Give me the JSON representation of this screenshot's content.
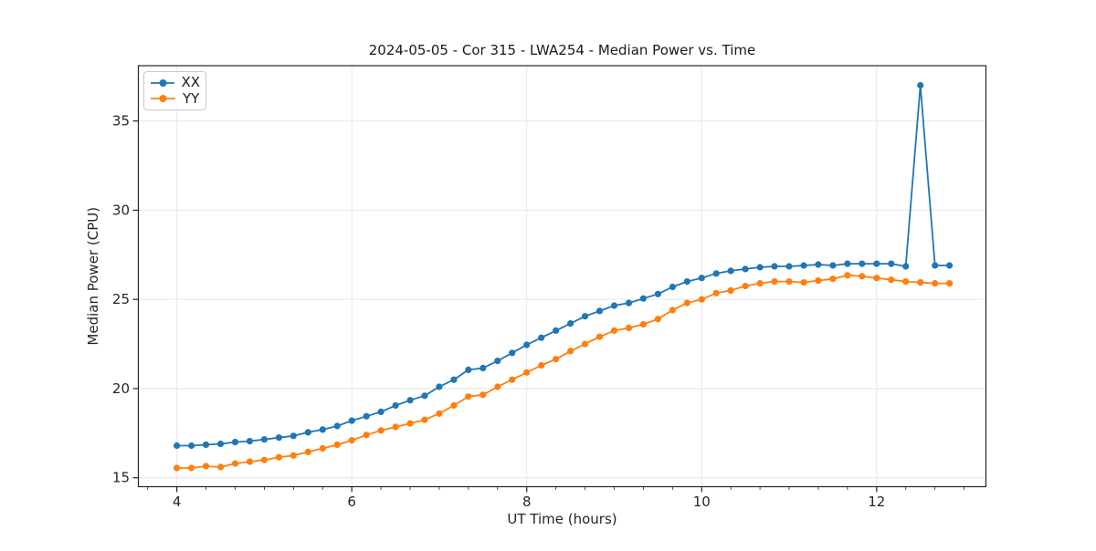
{
  "chart_data": {
    "type": "line",
    "title": "2024-05-05 - Cor 315 - LWA254 - Median Power vs. Time",
    "xlabel": "UT Time (hours)",
    "ylabel": "Median Power (CPU)",
    "grid": true,
    "legend_position": "upper left",
    "x_ticks": [
      4,
      6,
      8,
      10,
      12
    ],
    "y_ticks": [
      15,
      20,
      25,
      30,
      35
    ],
    "x_minor_tick_step": 0.3333,
    "xlim": [
      3.56,
      13.25
    ],
    "ylim": [
      14.5,
      38.1
    ],
    "x": [
      4.0,
      4.167,
      4.333,
      4.5,
      4.667,
      4.833,
      5.0,
      5.167,
      5.333,
      5.5,
      5.667,
      5.833,
      6.0,
      6.167,
      6.333,
      6.5,
      6.667,
      6.833,
      7.0,
      7.167,
      7.333,
      7.5,
      7.667,
      7.833,
      8.0,
      8.167,
      8.333,
      8.5,
      8.667,
      8.833,
      9.0,
      9.167,
      9.333,
      9.5,
      9.667,
      9.833,
      10.0,
      10.167,
      10.333,
      10.5,
      10.667,
      10.833,
      11.0,
      11.167,
      11.333,
      11.5,
      11.667,
      11.833,
      12.0,
      12.167,
      12.333,
      12.5,
      12.667,
      12.833
    ],
    "series": [
      {
        "name": "XX",
        "color": "#1f77b4",
        "marker": "circle",
        "values": [
          16.8,
          16.8,
          16.85,
          16.9,
          17.0,
          17.05,
          17.15,
          17.25,
          17.35,
          17.55,
          17.7,
          17.9,
          18.2,
          18.45,
          18.7,
          19.05,
          19.35,
          19.6,
          20.1,
          20.5,
          21.05,
          21.15,
          21.55,
          22.0,
          22.45,
          22.85,
          23.25,
          23.65,
          24.05,
          24.35,
          24.65,
          24.8,
          25.05,
          25.3,
          25.7,
          26.0,
          26.2,
          26.45,
          26.6,
          26.7,
          26.8,
          26.85,
          26.85,
          26.9,
          26.95,
          26.9,
          27.0,
          27.0,
          27.0,
          27.0,
          26.85,
          37.0,
          26.9,
          26.9
        ]
      },
      {
        "name": "YY",
        "color": "#ff7f0e",
        "marker": "circle",
        "values": [
          15.55,
          15.55,
          15.65,
          15.6,
          15.8,
          15.9,
          16.0,
          16.15,
          16.25,
          16.45,
          16.65,
          16.85,
          17.1,
          17.4,
          17.65,
          17.85,
          18.05,
          18.25,
          18.6,
          19.05,
          19.55,
          19.65,
          20.1,
          20.5,
          20.9,
          21.3,
          21.65,
          22.1,
          22.5,
          22.9,
          23.25,
          23.4,
          23.6,
          23.9,
          24.4,
          24.8,
          25.0,
          25.35,
          25.5,
          25.75,
          25.9,
          26.0,
          26.0,
          25.95,
          26.05,
          26.15,
          26.35,
          26.3,
          26.2,
          26.1,
          26.0,
          25.95,
          25.9,
          25.9
        ]
      }
    ],
    "annotations": {
      "spike": {
        "series": "XX",
        "x": 12.5,
        "value": 37.0
      }
    }
  },
  "style_colors": {
    "grid": "#e6e6e6",
    "spine": "#262626",
    "text": "#262626",
    "background": "#ffffff"
  }
}
